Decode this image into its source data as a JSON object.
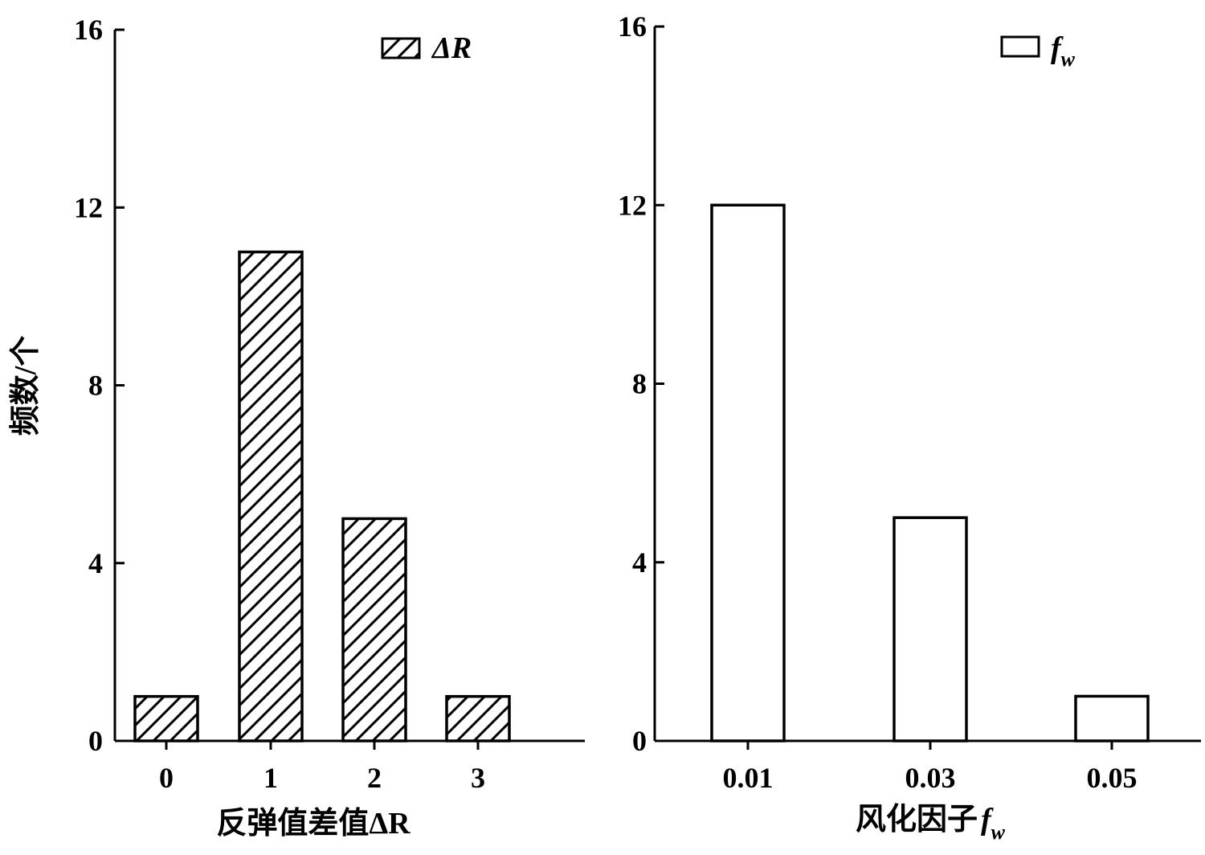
{
  "chart_data": [
    {
      "type": "bar",
      "categories": [
        "0",
        "1",
        "2",
        "3"
      ],
      "values": [
        1,
        11,
        5,
        1
      ],
      "ylim": [
        0,
        16
      ],
      "yticks": [
        "0",
        "4",
        "8",
        "12",
        "16"
      ],
      "xlabel": "反弹值差值ΔR",
      "ylabel": "频数/个",
      "legend": {
        "label": "ΔR",
        "position": "top-right"
      },
      "bar_style": "hatched"
    },
    {
      "type": "bar",
      "categories": [
        "0.01",
        "0.03",
        "0.05"
      ],
      "values": [
        12,
        5,
        1
      ],
      "ylim": [
        0,
        16
      ],
      "yticks": [
        "0",
        "4",
        "8",
        "12",
        "16"
      ],
      "xlabel": "风化因子",
      "xlabel_symbol": "f",
      "xlabel_sub": "w",
      "legend": {
        "label": "f",
        "label_sub": "w",
        "position": "top-right"
      },
      "bar_style": "open"
    }
  ]
}
